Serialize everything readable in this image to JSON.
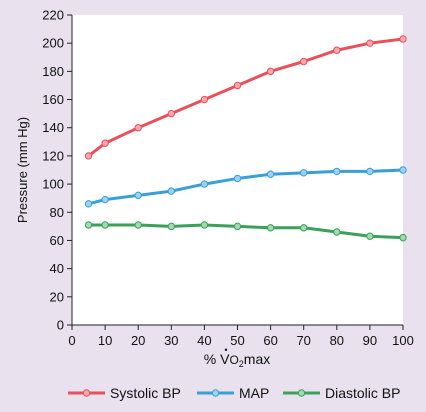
{
  "chart_data": {
    "type": "line",
    "xlabel_prefix": "% ",
    "xlabel_v": "V",
    "xlabel_dot": "•",
    "xlabel_sub": "O",
    "xlabel_sub2": "2",
    "xlabel_suffix": "max",
    "ylabel": "Pressure (mm Hg)",
    "xlim": [
      0,
      100
    ],
    "ylim": [
      0,
      220
    ],
    "xticks": [
      0,
      10,
      20,
      30,
      40,
      50,
      60,
      70,
      80,
      90,
      100
    ],
    "yticks": [
      0,
      20,
      40,
      60,
      80,
      100,
      120,
      140,
      160,
      180,
      200,
      220
    ],
    "grid": false,
    "legend_position": "bottom",
    "series": [
      {
        "name": "Systolic BP",
        "color": "#e8505b",
        "marker_fill": "#f4a8ae",
        "x": [
          5,
          10,
          20,
          30,
          40,
          50,
          60,
          70,
          80,
          90,
          100
        ],
        "values": [
          120,
          129,
          140,
          150,
          160,
          170,
          180,
          187,
          195,
          200,
          203
        ]
      },
      {
        "name": "MAP",
        "color": "#3a9fd8",
        "marker_fill": "#9fd0ee",
        "x": [
          5,
          10,
          20,
          30,
          40,
          50,
          60,
          70,
          80,
          90,
          100
        ],
        "values": [
          86,
          89,
          92,
          95,
          100,
          104,
          107,
          108,
          109,
          109,
          110
        ]
      },
      {
        "name": "Diastolic BP",
        "color": "#3aa05a",
        "marker_fill": "#a3d8b0",
        "x": [
          5,
          10,
          20,
          30,
          40,
          50,
          60,
          70,
          80,
          90,
          100
        ],
        "values": [
          71,
          71,
          71,
          70,
          71,
          70,
          69,
          69,
          66,
          63,
          62
        ]
      }
    ]
  }
}
